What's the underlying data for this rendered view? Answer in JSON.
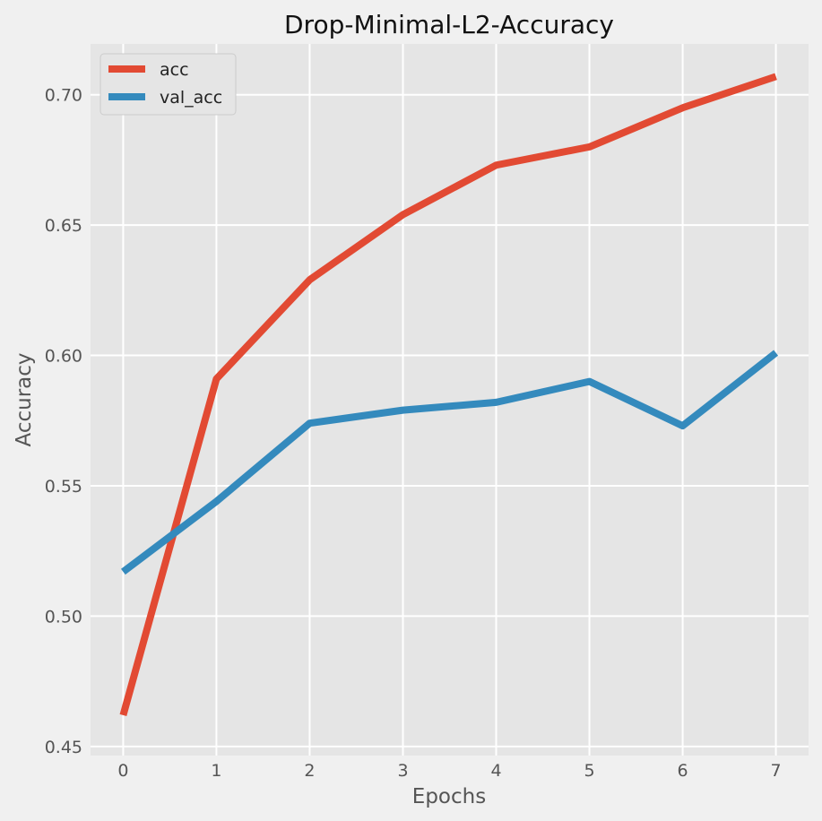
{
  "chart_data": {
    "type": "line",
    "title": "Drop-Minimal-L2-Accuracy",
    "xlabel": "Epochs",
    "ylabel": "Accuracy",
    "x": [
      0,
      1,
      2,
      3,
      4,
      5,
      6,
      7
    ],
    "xticks": [
      "0",
      "1",
      "2",
      "3",
      "4",
      "5",
      "6",
      "7"
    ],
    "yticks": [
      "0.45",
      "0.50",
      "0.55",
      "0.60",
      "0.65",
      "0.70"
    ],
    "ytick_values": [
      0.45,
      0.5,
      0.55,
      0.6,
      0.65,
      0.7
    ],
    "xlim": [
      -0.35,
      7.35
    ],
    "ylim": [
      0.4465,
      0.7195
    ],
    "grid": true,
    "legend_position": "top-left",
    "series": [
      {
        "name": "acc",
        "color": "#E24A33",
        "values": [
          0.462,
          0.591,
          0.629,
          0.654,
          0.673,
          0.68,
          0.695,
          0.707
        ]
      },
      {
        "name": "val_acc",
        "color": "#348ABD",
        "values": [
          0.517,
          0.544,
          0.574,
          0.579,
          0.582,
          0.59,
          0.573,
          0.601
        ]
      }
    ]
  }
}
